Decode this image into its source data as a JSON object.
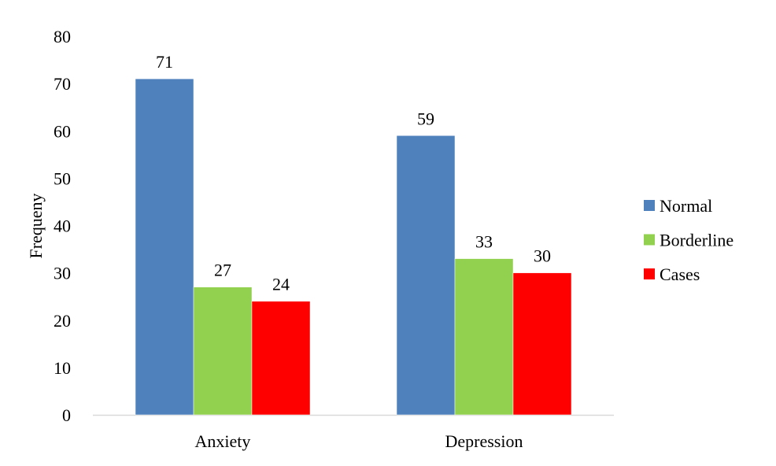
{
  "chart_data": {
    "type": "bar",
    "title": "",
    "xlabel": "",
    "ylabel": "Frequeny",
    "ylim": [
      0,
      80
    ],
    "yticks": [
      0,
      10,
      20,
      30,
      40,
      50,
      60,
      70,
      80
    ],
    "grid": false,
    "legend_position": "right",
    "categories": [
      "Anxiety",
      "Depression"
    ],
    "series": [
      {
        "name": "Normal",
        "color": "#4F81BD",
        "values": [
          71,
          59
        ]
      },
      {
        "name": "Borderline",
        "color": "#92D050",
        "values": [
          27,
          33
        ]
      },
      {
        "name": "Cases",
        "color": "#FF0000",
        "values": [
          24,
          30
        ]
      }
    ]
  }
}
